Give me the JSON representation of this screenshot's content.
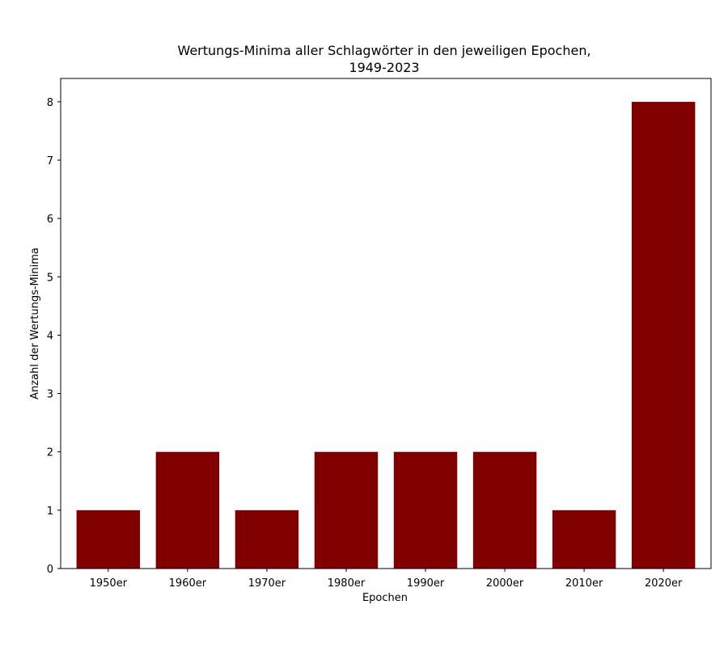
{
  "chart_data": {
    "type": "bar",
    "title_line1": "Wertungs-Minima aller Schlagwörter in den jeweiligen Epochen,",
    "title_line2": "1949-2023",
    "xlabel": "Epochen",
    "ylabel": "Anzahl der Wertungs-Minima",
    "categories": [
      "1950er",
      "1960er",
      "1970er",
      "1980er",
      "1990er",
      "2000er",
      "2010er",
      "2020er"
    ],
    "values": [
      1,
      2,
      1,
      2,
      2,
      2,
      1,
      8
    ],
    "ylim": [
      0,
      8.4
    ],
    "yticks": [
      0,
      1,
      2,
      3,
      4,
      5,
      6,
      7,
      8
    ],
    "bar_color": "#800000",
    "grid": false,
    "legend": "none"
  }
}
